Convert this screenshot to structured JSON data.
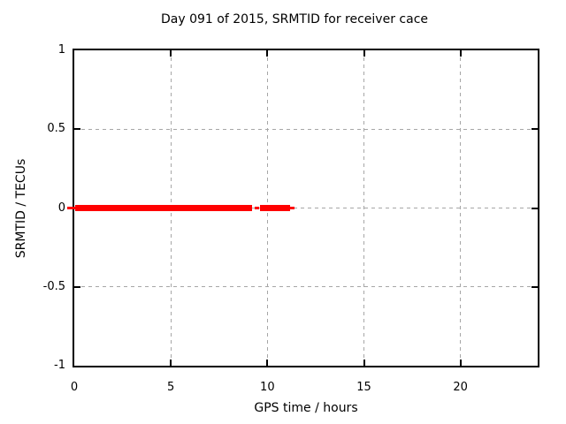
{
  "chart_data": {
    "type": "line",
    "title": "Day 091 of 2015, SRMTID for receiver cace",
    "xlabel": "GPS time / hours",
    "ylabel": "SRMTID / TECUs",
    "xlim": [
      0,
      24
    ],
    "ylim": [
      -1,
      1
    ],
    "xticks": [
      0,
      5,
      10,
      15,
      20
    ],
    "xtick_labels": [
      "0",
      "5",
      "10",
      "15",
      "20"
    ],
    "yticks": [
      -1,
      -0.5,
      0,
      0.5,
      1
    ],
    "ytick_labels": [
      "-1",
      "-0.5",
      "0",
      "0.5",
      "1"
    ],
    "grid": true,
    "legend": "none",
    "series": [
      {
        "name": "SRMTID",
        "color": "#ff0000",
        "y": 0,
        "description": "flat red line at SRMTID = 0 TECUs, plotted from ~0.0 to ~9.2 h and ~9.6 to ~11.2 h; no data after ~11.2 h",
        "segments": [
          {
            "x_start": -0.35,
            "x_end": 0.05,
            "thick": false
          },
          {
            "x_start": 0.05,
            "x_end": 9.2,
            "thick": true
          },
          {
            "x_start": 9.35,
            "x_end": 9.55,
            "thick": false
          },
          {
            "x_start": 9.62,
            "x_end": 11.18,
            "thick": true
          },
          {
            "x_start": 11.18,
            "x_end": 11.42,
            "thick": false
          }
        ]
      }
    ],
    "colors": {
      "line": "#ff0000",
      "grid": "#a6a6a6",
      "border": "#000000",
      "background": "#ffffff",
      "text": "#000000"
    }
  }
}
